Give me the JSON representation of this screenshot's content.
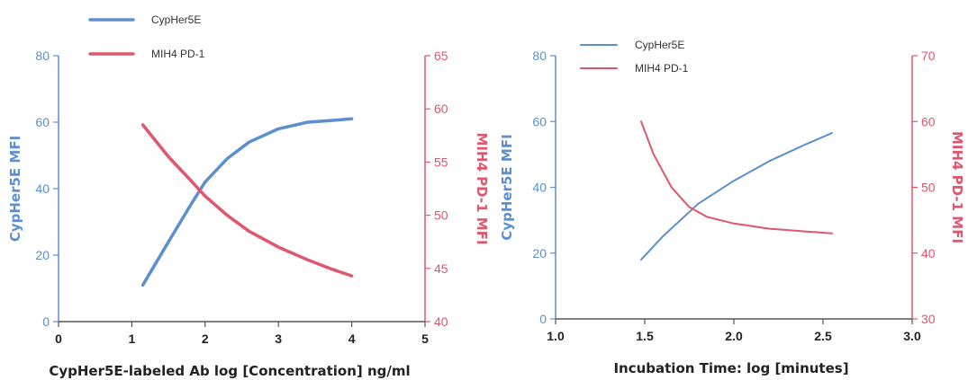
{
  "colors": {
    "blue": "#5b8fcf",
    "red": "#e0566c",
    "axis": "#555555"
  },
  "chart_data": [
    {
      "type": "line",
      "xlabel": "CypHer5E-labeled Ab log [Concentration] ng/ml",
      "ylabel_left": "CypHer5E MFI",
      "ylabel_right": "MIH4 PD-1 MFI",
      "xlim": [
        0,
        5
      ],
      "ylim_left": [
        0,
        80
      ],
      "ylim_right": [
        40,
        65
      ],
      "x_ticks": [
        "0",
        "1",
        "2",
        "3",
        "4",
        "5"
      ],
      "y_ticks_left": [
        "0",
        "20",
        "40",
        "60",
        "80"
      ],
      "y_ticks_right": [
        "40",
        "45",
        "50",
        "55",
        "60",
        "65"
      ],
      "legend": [
        "CypHer5E",
        "MIH4 PD-1"
      ],
      "series": [
        {
          "name": "CypHer5E",
          "axis": "left",
          "x": [
            1.15,
            1.5,
            1.8,
            2.0,
            2.3,
            2.6,
            3.0,
            3.4,
            3.7,
            4.0
          ],
          "y": [
            11,
            24,
            35,
            42,
            49,
            54,
            58,
            60,
            60.5,
            61
          ]
        },
        {
          "name": "MIH4 PD-1",
          "axis": "right",
          "x": [
            1.15,
            1.5,
            1.8,
            2.0,
            2.3,
            2.6,
            3.0,
            3.4,
            3.7,
            4.0
          ],
          "y": [
            58.5,
            55.5,
            53.3,
            51.8,
            50.0,
            48.5,
            47.0,
            45.8,
            45.0,
            44.3
          ]
        }
      ]
    },
    {
      "type": "line",
      "xlabel": "Incubation Time: log [minutes]",
      "ylabel_left": "CypHer5E MFI",
      "ylabel_right": "MIH4 PD-1 MFI",
      "xlim": [
        1.0,
        3.0
      ],
      "ylim_left": [
        0,
        80
      ],
      "ylim_right": [
        30,
        70
      ],
      "x_ticks": [
        "1.0",
        "1.5",
        "2.0",
        "2.5",
        "3.0"
      ],
      "y_ticks_left": [
        "0",
        "20",
        "40",
        "60",
        "80"
      ],
      "y_ticks_right": [
        "30",
        "40",
        "50",
        "60",
        "70"
      ],
      "legend": [
        "CypHer5E",
        "MIH4 PD-1"
      ],
      "series": [
        {
          "name": "CypHer5E",
          "axis": "left",
          "x": [
            1.48,
            1.6,
            1.8,
            2.0,
            2.2,
            2.4,
            2.55
          ],
          "y": [
            18,
            25,
            35,
            42,
            48,
            53,
            56.5
          ]
        },
        {
          "name": "MIH4 PD-1",
          "axis": "right",
          "x": [
            1.48,
            1.55,
            1.65,
            1.75,
            1.85,
            2.0,
            2.2,
            2.4,
            2.55
          ],
          "y": [
            60,
            55,
            50,
            47,
            45.5,
            44.5,
            43.7,
            43.3,
            43.0
          ]
        }
      ]
    }
  ]
}
